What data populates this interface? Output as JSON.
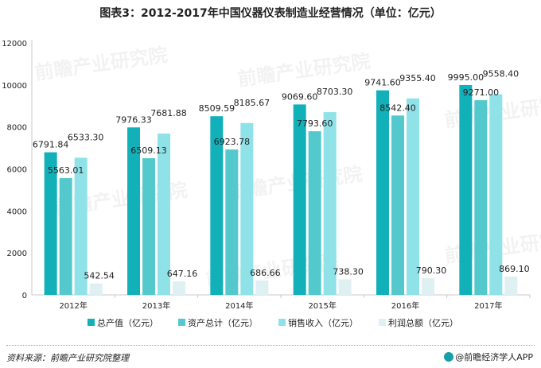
{
  "title": "图表3：2012-2017年中国仪器仪表制造业经营情况（单位：亿元）",
  "source": "资料来源：前瞻产业研究院整理",
  "app_credit": "@前瞻经济学人APP",
  "watermark": "前瞻产业研究院",
  "colors": {
    "series": [
      "#12b0b8",
      "#54c9cd",
      "#8fe2e8",
      "#dff0f3"
    ],
    "axis": "#c8c8c8",
    "grid": "#e5e5e5",
    "label": "#222222"
  },
  "chart_data": {
    "type": "bar",
    "categories": [
      "2012年",
      "2013年",
      "2014年",
      "2015年",
      "2016年",
      "2017年"
    ],
    "series": [
      {
        "name": "总产值（亿元）",
        "values": [
          6791.84,
          7976.33,
          8509.59,
          9069.6,
          9741.6,
          9995.0
        ],
        "labels": [
          "6791.84",
          "7976.33",
          "8509.59",
          "9069.60",
          "9741.60",
          "9995.00"
        ]
      },
      {
        "name": "资产总计（亿元）",
        "values": [
          5563.01,
          6509.13,
          6923.78,
          7793.6,
          8542.4,
          9271.0
        ],
        "labels": [
          "5563.01",
          "6509.13",
          "6923.78",
          "7793.60",
          "8542.40",
          "9271.00"
        ]
      },
      {
        "name": "销售收入（亿元）",
        "values": [
          6533.3,
          7681.88,
          8185.67,
          8703.3,
          9355.4,
          9558.4
        ],
        "labels": [
          "6533.30",
          "7681.88",
          "8185.67",
          "8703.30",
          "9355.40",
          "9558.40"
        ]
      },
      {
        "name": "利润总额（亿元）",
        "values": [
          542.54,
          647.16,
          686.66,
          738.3,
          790.3,
          869.1
        ],
        "labels": [
          "542.54",
          "647.16",
          "686.66",
          "738.30",
          "790.30",
          "869.10"
        ]
      }
    ],
    "yticks": [
      "0",
      "2000",
      "4000",
      "6000",
      "8000",
      "10000",
      "12000"
    ],
    "ylim": [
      0,
      12000
    ],
    "grid": false,
    "legend_position": "bottom"
  }
}
